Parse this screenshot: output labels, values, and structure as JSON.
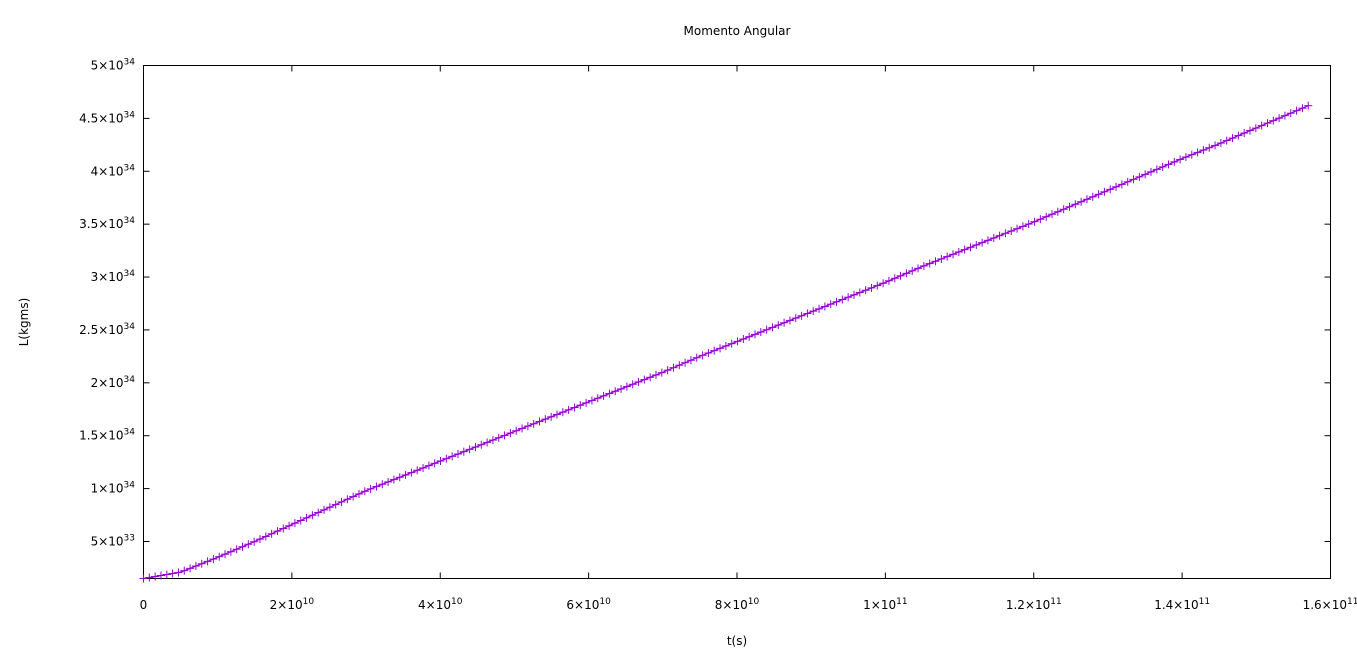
{
  "chart_data": {
    "type": "scatter",
    "title": "Momento Angular",
    "xlabel": "t(s)",
    "ylabel": "L(kgms)",
    "xlim": [
      0,
      160000000000
    ],
    "ylim": [
      1500000000000000000000000000000000,
      50000000000000000000000000000000000
    ],
    "grid": false,
    "marker": "+",
    "colors": {
      "series": "#9400d3",
      "axes": "#000000",
      "background": "#ffffff"
    },
    "x_ticks": [
      {
        "value": 0,
        "mantissa": "0",
        "exponent": ""
      },
      {
        "value": 20000000000,
        "mantissa": "2×10",
        "exponent": "10"
      },
      {
        "value": 40000000000,
        "mantissa": "4×10",
        "exponent": "10"
      },
      {
        "value": 60000000000,
        "mantissa": "6×10",
        "exponent": "10"
      },
      {
        "value": 80000000000,
        "mantissa": "8×10",
        "exponent": "10"
      },
      {
        "value": 100000000000,
        "mantissa": "1×10",
        "exponent": "11"
      },
      {
        "value": 120000000000,
        "mantissa": "1.2×10",
        "exponent": "11"
      },
      {
        "value": 140000000000,
        "mantissa": "1.4×10",
        "exponent": "11"
      },
      {
        "value": 160000000000,
        "mantissa": "1.6×10",
        "exponent": "11"
      }
    ],
    "y_ticks": [
      {
        "value": 5000000000000000000000000000000000,
        "mantissa": "5×10",
        "exponent": "33"
      },
      {
        "value": 10000000000000000000000000000000000,
        "mantissa": "1×10",
        "exponent": "34"
      },
      {
        "value": 15000000000000000000000000000000000,
        "mantissa": "1.5×10",
        "exponent": "34"
      },
      {
        "value": 20000000000000000000000000000000000,
        "mantissa": "2×10",
        "exponent": "34"
      },
      {
        "value": 25000000000000000000000000000000000,
        "mantissa": "2.5×10",
        "exponent": "34"
      },
      {
        "value": 30000000000000000000000000000000000,
        "mantissa": "3×10",
        "exponent": "34"
      },
      {
        "value": 35000000000000000000000000000000000,
        "mantissa": "3.5×10",
        "exponent": "34"
      },
      {
        "value": 40000000000000000000000000000000000,
        "mantissa": "4×10",
        "exponent": "34"
      },
      {
        "value": 45000000000000000000000000000000000,
        "mantissa": "4.5×10",
        "exponent": "34"
      },
      {
        "value": 50000000000000000000000000000000000,
        "mantissa": "5×10",
        "exponent": "34"
      }
    ],
    "series": [
      {
        "x": [
          0,
          5000000000,
          10000000000,
          15000000000,
          20000000000,
          25000000000,
          30000000000,
          35000000000,
          40000000000,
          45000000000,
          50000000000,
          55000000000,
          60000000000,
          65000000000,
          70000000000,
          75000000000,
          80000000000,
          85000000000,
          90000000000,
          95000000000,
          100000000000,
          105000000000,
          110000000000,
          115000000000,
          120000000000,
          125000000000,
          130000000000,
          135000000000,
          140000000000,
          145000000000,
          150000000000,
          155000000000,
          157000000000
        ],
        "y": [
          1.5e+33,
          2.1e+33,
          3.5e+33,
          5e+33,
          6.6e+33,
          8.2e+33,
          9.8e+33,
          1.12e+34,
          1.26e+34,
          1.4e+34,
          1.54e+34,
          1.68e+34,
          1.82e+34,
          1.96e+34,
          2.1e+34,
          2.25e+34,
          2.39e+34,
          2.53e+34,
          2.67e+34,
          2.81e+34,
          2.95e+34,
          3.1e+34,
          3.24e+34,
          3.38e+34,
          3.52e+34,
          3.67e+34,
          3.82e+34,
          3.97e+34,
          4.12e+34,
          4.26e+34,
          4.41e+34,
          4.56e+34,
          4.62e+34
        ]
      }
    ]
  }
}
